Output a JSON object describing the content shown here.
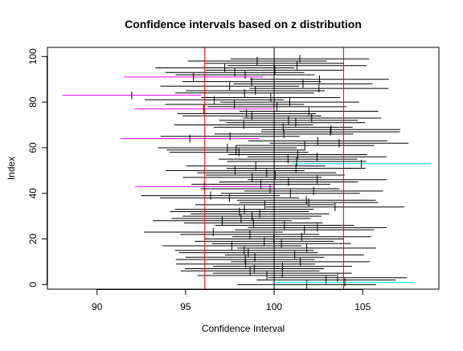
{
  "chart_data": {
    "type": "interval",
    "title": "Confidence intervals based on z distribution",
    "xlabel": "Confidence Interval",
    "ylabel": "Index",
    "xlim": [
      87.2,
      109.3
    ],
    "ylim": [
      -2,
      104
    ],
    "x_ticks": [
      90,
      95,
      100,
      105
    ],
    "y_ticks": [
      0,
      20,
      40,
      60,
      80,
      100
    ],
    "mu": 100,
    "reference_lines": [
      96.08,
      103.92
    ],
    "half_width": 3.92,
    "colors": {
      "covers_mu": "#000000",
      "misses_low": "#ff00ff",
      "misses_high": "#00ffff",
      "reference": "#ff0000",
      "mu_line": "#000000"
    },
    "means": [
      101.84,
      103.99,
      102.93,
      103.58,
      99.59,
      100.46,
      98.64,
      98.88,
      100.47,
      98.39,
      101.48,
      98.37,
      98.91,
      101.16,
      98.54,
      98.31,
      101.84,
      97.61,
      100.41,
      99.44,
      99.98,
      101.55,
      98.63,
      96.56,
      101.71,
      102.44,
      100.58,
      98.83,
      97.07,
      98.13,
      98.75,
      99.19,
      98.04,
      98.32,
      103.44,
      99.47,
      101.95,
      101.82,
      97.48,
      96.41,
      100.92,
      102.23,
      99.77,
      96.06,
      99.25,
      100.81,
      102.43,
      98.76,
      100.06,
      99.58,
      97.79,
      101.23,
      98.96,
      104.92,
      101.27,
      100.78,
      102.42,
      101.33,
      98.01,
      97.85,
      97.36,
      101.73,
      103.67,
      102.46,
      95.24,
      97.51,
      100.55,
      103.18,
      103.21,
      100.51,
      98.28,
      101.22,
      100.81,
      102.12,
      98.74,
      98.44,
      101.96,
      96.02,
      100.16,
      97.76,
      100.88,
      96.62,
      99.81,
      91.96,
      98.33,
      98.94,
      102.53,
      97.49,
      101.63,
      98.73,
      102.56,
      95.44,
      98.36,
      97.78,
      100.04,
      97.21,
      101.29,
      100.0,
      99.04,
      101.45
    ]
  }
}
